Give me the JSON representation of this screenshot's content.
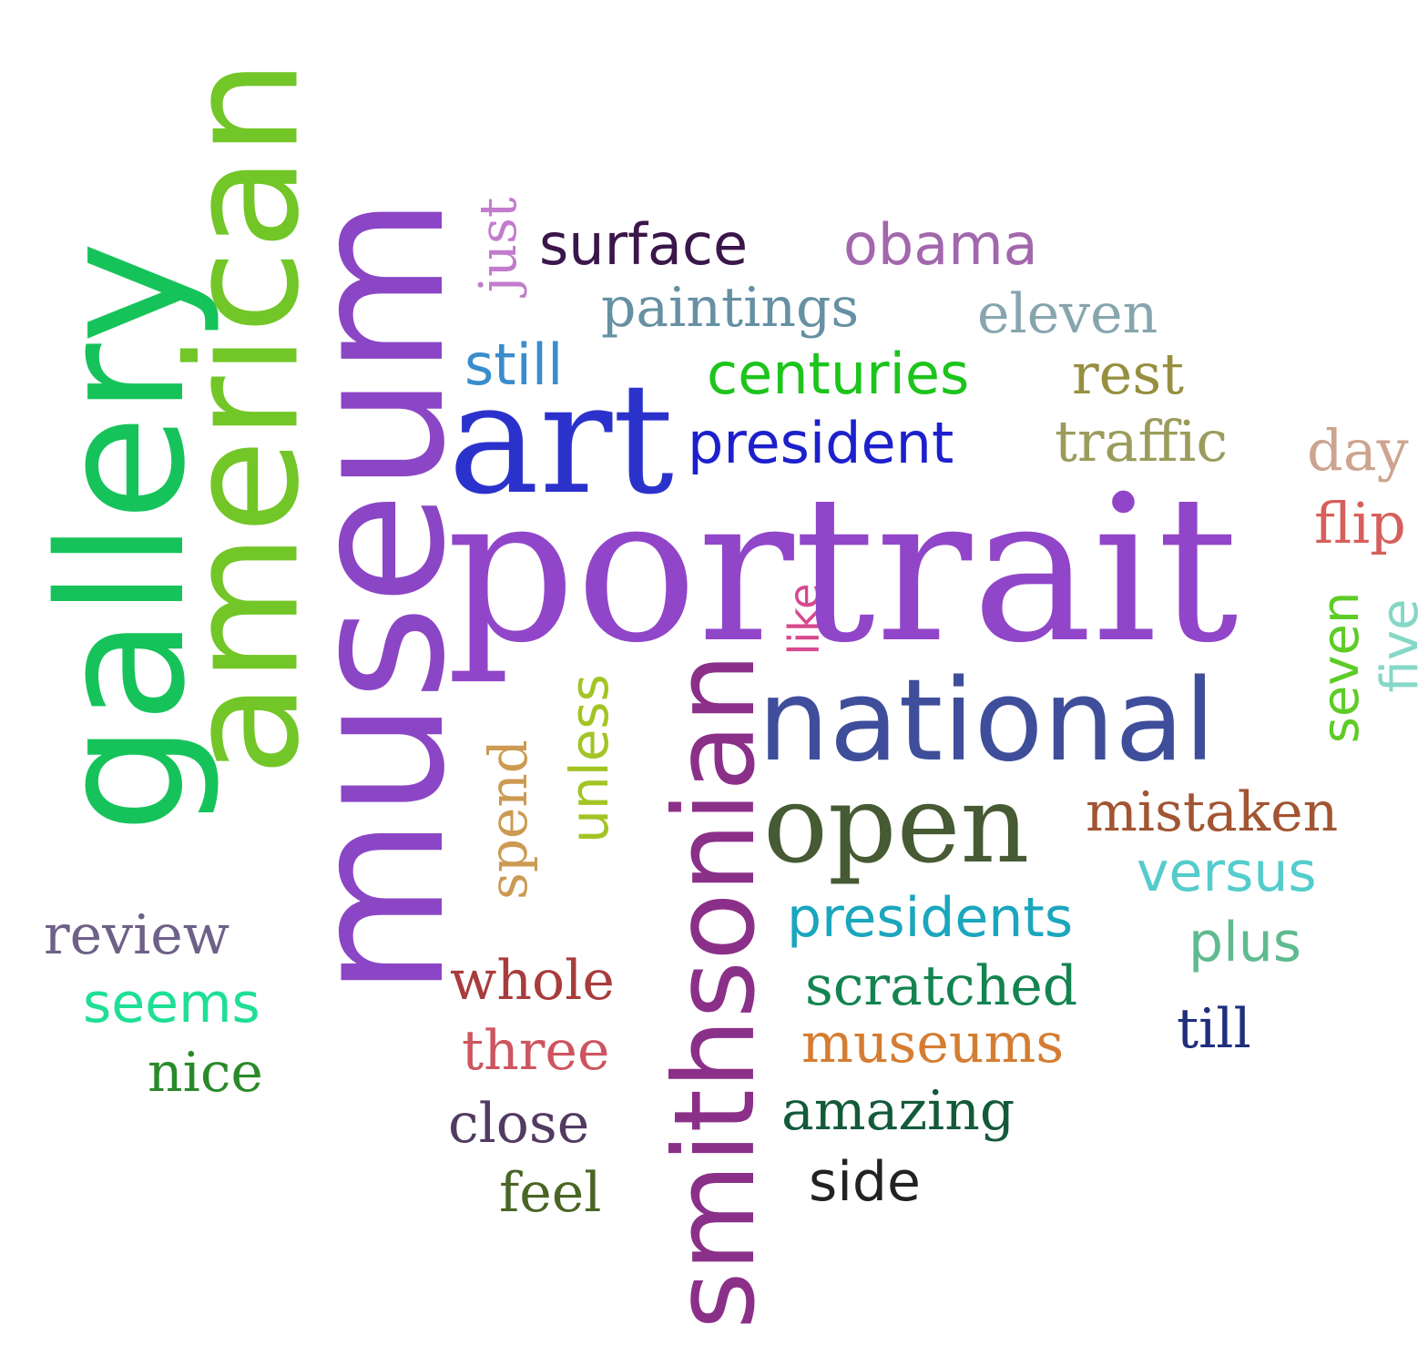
{
  "words": [
    {
      "key": "portrait",
      "text": "portrait",
      "color": "#9146c9"
    },
    {
      "key": "museum",
      "text": "museum",
      "color": "#8b46c6"
    },
    {
      "key": "american",
      "text": "american",
      "color": "#72c627"
    },
    {
      "key": "gallery",
      "text": "gallery",
      "color": "#16c35b"
    },
    {
      "key": "art",
      "text": "art",
      "color": "#2b32cc"
    },
    {
      "key": "smithsonian",
      "text": "smithsonian",
      "color": "#8b3089"
    },
    {
      "key": "national",
      "text": "national",
      "color": "#3f4e9a"
    },
    {
      "key": "open",
      "text": "open",
      "color": "#465a33"
    },
    {
      "key": "surface",
      "text": "surface",
      "color": "#3a164a"
    },
    {
      "key": "obama",
      "text": "obama",
      "color": "#a267ad"
    },
    {
      "key": "paintings",
      "text": "paintings",
      "color": "#6690a3"
    },
    {
      "key": "eleven",
      "text": "eleven",
      "color": "#87a5ad"
    },
    {
      "key": "still",
      "text": "still",
      "color": "#3a8dcc"
    },
    {
      "key": "centuries",
      "text": "centuries",
      "color": "#1cc41c"
    },
    {
      "key": "rest",
      "text": "rest",
      "color": "#968f3f"
    },
    {
      "key": "president",
      "text": "president",
      "color": "#1c20cc"
    },
    {
      "key": "traffic",
      "text": "traffic",
      "color": "#9b9c5c"
    },
    {
      "key": "day",
      "text": "day",
      "color": "#cda48f"
    },
    {
      "key": "flip",
      "text": "flip",
      "color": "#d65f5b"
    },
    {
      "key": "just",
      "text": "just",
      "color": "#c27ccc"
    },
    {
      "key": "like",
      "text": "like",
      "color": "#d6498f"
    },
    {
      "key": "seven",
      "text": "seven",
      "color": "#5dcc26"
    },
    {
      "key": "five",
      "text": "five",
      "color": "#85d7c6"
    },
    {
      "key": "unless",
      "text": "unless",
      "color": "#a2c425"
    },
    {
      "key": "spend",
      "text": "spend",
      "color": "#cc9a52"
    },
    {
      "key": "mistaken",
      "text": "mistaken",
      "color": "#a15532"
    },
    {
      "key": "versus",
      "text": "versus",
      "color": "#55cccc"
    },
    {
      "key": "presidents",
      "text": "presidents",
      "color": "#1aa6bd"
    },
    {
      "key": "plus",
      "text": "plus",
      "color": "#5fba8f"
    },
    {
      "key": "review",
      "text": "review",
      "color": "#6e6187"
    },
    {
      "key": "seems",
      "text": "seems",
      "color": "#1edf95"
    },
    {
      "key": "nice",
      "text": "nice",
      "color": "#2a8a2a"
    },
    {
      "key": "whole",
      "text": "whole",
      "color": "#a83c3c"
    },
    {
      "key": "three",
      "text": "three",
      "color": "#cd5560"
    },
    {
      "key": "close",
      "text": "close",
      "color": "#523a61"
    },
    {
      "key": "feel",
      "text": "feel",
      "color": "#4a6525"
    },
    {
      "key": "scratched",
      "text": "scratched",
      "color": "#138450"
    },
    {
      "key": "museums",
      "text": "museums",
      "color": "#d47d32"
    },
    {
      "key": "till",
      "text": "till",
      "color": "#1f2f7c"
    },
    {
      "key": "amazing",
      "text": "amazing",
      "color": "#135a3a"
    },
    {
      "key": "side",
      "text": "side",
      "color": "#222222"
    }
  ]
}
